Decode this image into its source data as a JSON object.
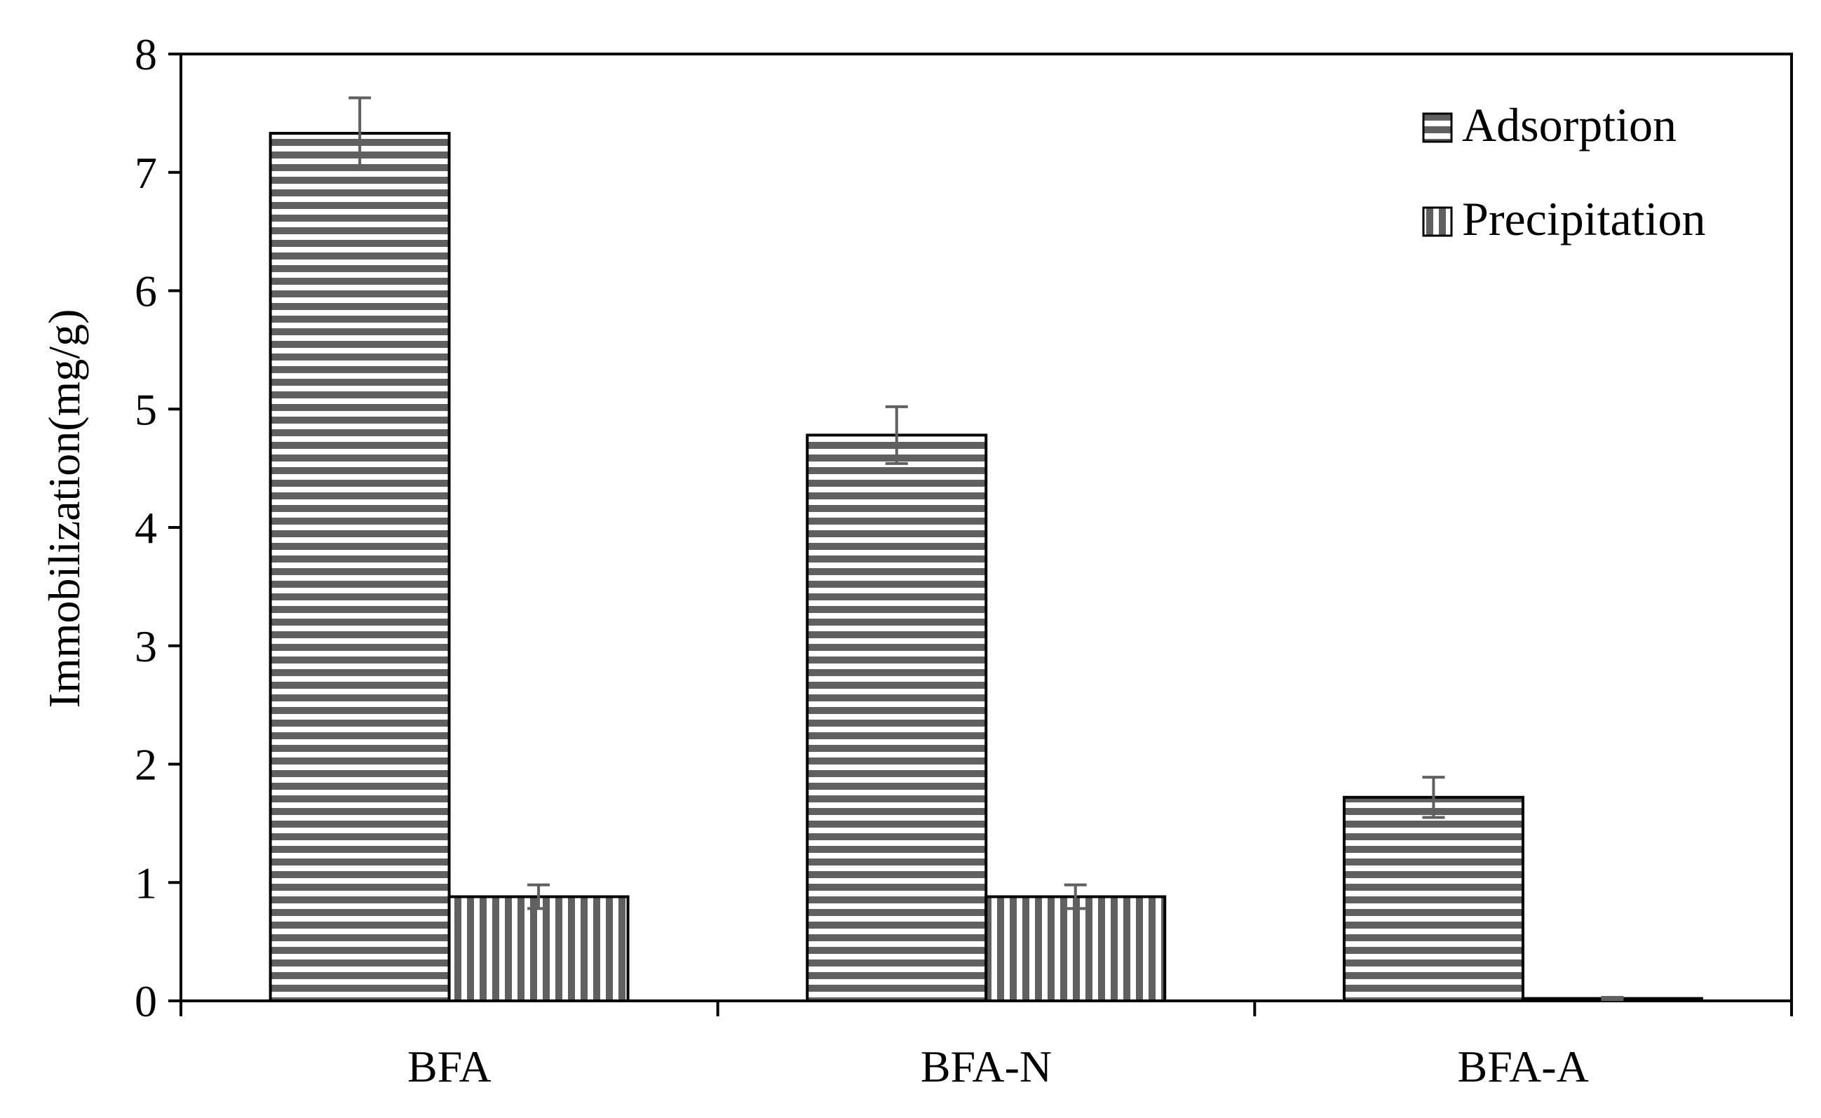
{
  "chart_data": {
    "type": "bar",
    "categories": [
      "BFA",
      "BFA-N",
      "BFA-A"
    ],
    "series": [
      {
        "name": "Adsorption",
        "values": [
          7.33,
          4.78,
          1.72
        ],
        "errors": [
          0.3,
          0.24,
          0.17
        ],
        "pattern": "horizontal-stripes"
      },
      {
        "name": "Precipitation",
        "values": [
          0.88,
          0.88,
          0.02
        ],
        "errors": [
          0.1,
          0.1,
          0.01
        ],
        "pattern": "vertical-stripes"
      }
    ],
    "title": "",
    "xlabel": "",
    "ylabel": "Immobilization(mg/g)",
    "ylim": [
      0,
      8
    ],
    "yticks": [
      "0",
      "1",
      "2",
      "3",
      "4",
      "5",
      "6",
      "7",
      "8"
    ],
    "grid": false,
    "legend_position": "top-right",
    "colors": {
      "stripe": "#606060",
      "bar_fill": "#ffffff",
      "axis": "#000000",
      "error_bar": "#606060"
    }
  }
}
